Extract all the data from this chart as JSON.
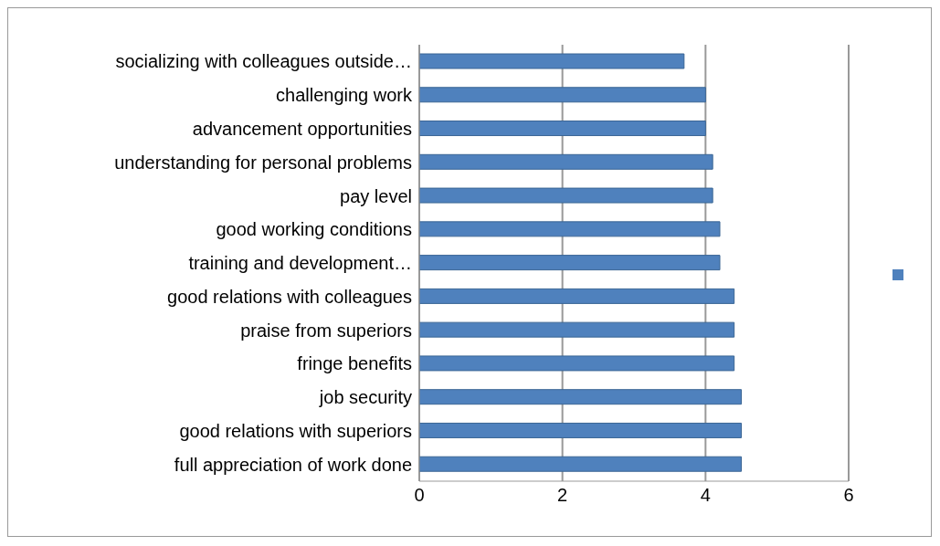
{
  "chart_data": {
    "type": "bar",
    "orientation": "horizontal",
    "categories": [
      "socializing with colleagues outside…",
      "challenging work",
      "advancement opportunities",
      "understanding for personal problems",
      "pay level",
      "good working conditions",
      "training and development…",
      "good relations with colleagues",
      "praise from superiors",
      "fringe benefits",
      "job security",
      "good relations with superiors",
      "full appreciation of work done"
    ],
    "series": [
      {
        "color": "#4f81bd",
        "values": [
          3.7,
          4.0,
          4.0,
          4.1,
          4.1,
          4.2,
          4.2,
          4.4,
          4.4,
          4.4,
          4.5,
          4.5,
          4.5
        ]
      }
    ],
    "xlim": [
      0,
      6
    ],
    "xticks": [
      0,
      2,
      4,
      6
    ],
    "grid": "x"
  }
}
